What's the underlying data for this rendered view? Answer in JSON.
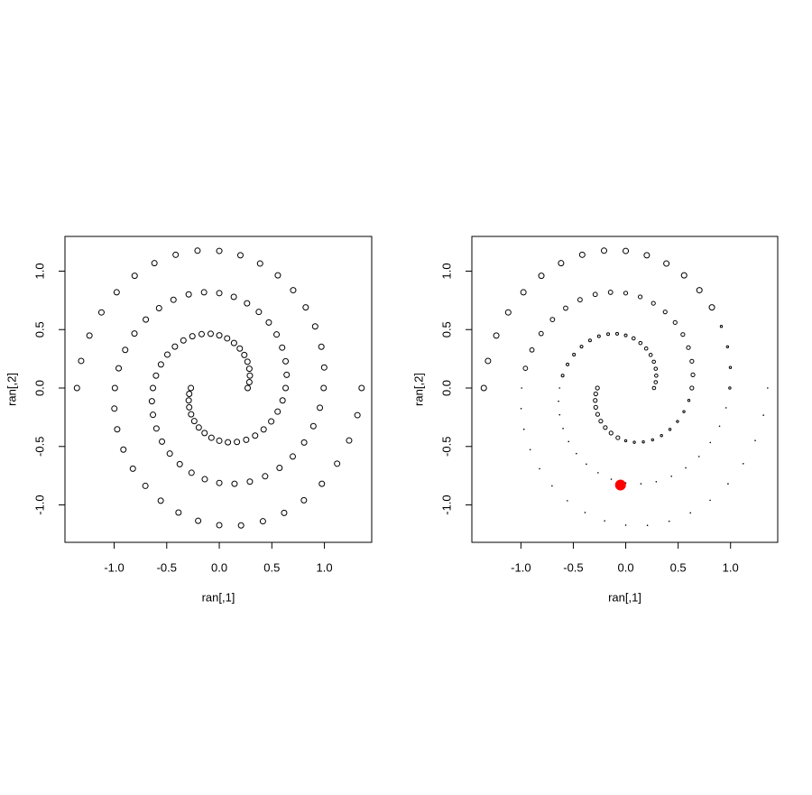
{
  "chart_data": [
    {
      "type": "scatter",
      "xlabel": "ran[,1]",
      "ylabel": "ran[,2]",
      "color": "#000000",
      "xlim": [
        -1.468,
        1.45
      ],
      "ylim": [
        -1.32,
        1.297
      ],
      "xticks": [
        {
          "value": -1,
          "label": "-1.0"
        },
        -0.5,
        {
          "value": 0,
          "label": "0.0"
        },
        0.5,
        {
          "value": 1,
          "label": "1.0"
        }
      ],
      "yticks": [
        {
          "value": -1,
          "label": "-1.0"
        },
        -0.5,
        {
          "value": 0,
          "label": "0.0"
        },
        0.5,
        {
          "value": 1,
          "label": "1.0"
        }
      ],
      "x": [
        0.27,
        0.286,
        0.291,
        0.286,
        0.268,
        0.238,
        0.195,
        0.14,
        0.075,
        0,
        -0.082,
        -0.168,
        -0.256,
        -0.341,
        -0.422,
        -0.494,
        -0.555,
        -0.602,
        -0.631,
        -0.641,
        -0.631,
        -0.598,
        -0.545,
        -0.471,
        -0.376,
        -0.264,
        -0.138,
        0,
        0.145,
        0.291,
        0.436,
        0.573,
        0.699,
        0.807,
        0.895,
        0.957,
        0.993,
        0.998,
        0.971,
        0.912,
        0.822,
        0.703,
        0.557,
        0.388,
        0.201,
        0,
        -0.207,
        -0.415,
        -0.617,
        -0.805,
        -0.976,
        -1.121,
        -1.235,
        -1.314,
        -1.354,
        -0.27,
        -0.286,
        -0.291,
        -0.286,
        -0.268,
        -0.238,
        -0.195,
        -0.14,
        -0.075,
        0,
        0.082,
        0.168,
        0.256,
        0.341,
        0.422,
        0.494,
        0.555,
        0.602,
        0.631,
        0.641,
        0.631,
        0.598,
        0.545,
        0.471,
        0.376,
        0.264,
        0.138,
        0,
        -0.145,
        -0.291,
        -0.436,
        -0.573,
        -0.699,
        -0.807,
        -0.895,
        -0.957,
        -0.993,
        -0.998,
        -0.971,
        -0.912,
        -0.822,
        -0.703,
        -0.557,
        -0.388,
        -0.201,
        0,
        0.207,
        0.415,
        0.617,
        0.805,
        0.976,
        1.121,
        1.235,
        1.314,
        1.354
      ],
      "y": [
        0,
        0.05,
        0.106,
        0.165,
        0.225,
        0.283,
        0.338,
        0.385,
        0.425,
        0.451,
        0.464,
        0.461,
        0.443,
        0.407,
        0.354,
        0.286,
        0.202,
        0.106,
        0,
        -0.113,
        -0.229,
        -0.346,
        -0.458,
        -0.561,
        -0.651,
        -0.725,
        -0.78,
        -0.812,
        -0.819,
        -0.801,
        -0.755,
        -0.683,
        -0.586,
        -0.466,
        -0.326,
        -0.169,
        0,
        0.176,
        0.353,
        0.527,
        0.69,
        0.837,
        0.964,
        1.065,
        1.136,
        1.173,
        1.175,
        1.14,
        1.068,
        0.96,
        0.819,
        0.647,
        0.449,
        0.232,
        0,
        0,
        -0.05,
        -0.106,
        -0.165,
        -0.225,
        -0.283,
        -0.338,
        -0.385,
        -0.425,
        -0.451,
        -0.464,
        -0.461,
        -0.443,
        -0.407,
        -0.354,
        -0.286,
        -0.202,
        -0.106,
        0,
        0.113,
        0.229,
        0.346,
        0.458,
        0.561,
        0.651,
        0.725,
        0.78,
        0.812,
        0.819,
        0.801,
        0.755,
        0.683,
        0.586,
        0.466,
        0.326,
        0.169,
        0,
        -0.176,
        -0.353,
        -0.527,
        -0.69,
        -0.837,
        -0.964,
        -1.065,
        -1.136,
        -1.173,
        -1.175,
        -1.14,
        -1.068,
        -0.96,
        -0.819,
        -0.647,
        -0.449,
        -0.232,
        0
      ]
    },
    {
      "type": "scatter",
      "xlabel": "ran[,1]",
      "ylabel": "ran[,2]",
      "color": "#000000",
      "xlim": [
        -1.468,
        1.45
      ],
      "ylim": [
        -1.32,
        1.297
      ],
      "xticks": [
        {
          "value": -1,
          "label": "-1.0"
        },
        -0.5,
        {
          "value": 0,
          "label": "0.0"
        },
        0.5,
        {
          "value": 1,
          "label": "1.0"
        }
      ],
      "yticks": [
        {
          "value": -1,
          "label": "-1.0"
        },
        -0.5,
        {
          "value": 0,
          "label": "0.0"
        },
        0.5,
        {
          "value": 1,
          "label": "1.0"
        }
      ],
      "x": [
        0.27,
        0.286,
        0.291,
        0.286,
        0.268,
        0.238,
        0.195,
        0.14,
        0.075,
        0,
        -0.082,
        -0.168,
        -0.256,
        -0.341,
        -0.422,
        -0.494,
        -0.555,
        -0.602,
        -0.631,
        -0.641,
        -0.631,
        -0.598,
        -0.545,
        -0.471,
        -0.376,
        -0.264,
        -0.138,
        0,
        0.145,
        0.291,
        0.436,
        0.573,
        0.699,
        0.807,
        0.895,
        0.957,
        0.993,
        0.998,
        0.971,
        0.912,
        0.822,
        0.703,
        0.557,
        0.388,
        0.201,
        0,
        -0.207,
        -0.415,
        -0.617,
        -0.805,
        -0.976,
        -1.121,
        -1.235,
        -1.314,
        -1.354,
        -0.27,
        -0.286,
        -0.291,
        -0.286,
        -0.268,
        -0.238,
        -0.195,
        -0.14,
        -0.075,
        0,
        0.082,
        0.168,
        0.256,
        0.341,
        0.422,
        0.494,
        0.555,
        0.602,
        0.631,
        0.641,
        0.631,
        0.598,
        0.545,
        0.471,
        0.376,
        0.264,
        0.138,
        0,
        -0.145,
        -0.291,
        -0.436,
        -0.573,
        -0.699,
        -0.807,
        -0.895,
        -0.957,
        -0.993,
        -0.998,
        -0.971,
        -0.912,
        -0.822,
        -0.703,
        -0.557,
        -0.388,
        -0.201,
        0,
        0.207,
        0.415,
        0.617,
        0.805,
        0.976,
        1.121,
        1.235,
        1.314,
        1.354
      ],
      "y": [
        0,
        0.05,
        0.106,
        0.165,
        0.225,
        0.283,
        0.338,
        0.385,
        0.425,
        0.451,
        0.464,
        0.461,
        0.443,
        0.407,
        0.354,
        0.286,
        0.202,
        0.106,
        0,
        -0.113,
        -0.229,
        -0.346,
        -0.458,
        -0.561,
        -0.651,
        -0.725,
        -0.78,
        -0.812,
        -0.819,
        -0.801,
        -0.755,
        -0.683,
        -0.586,
        -0.466,
        -0.326,
        -0.169,
        0,
        0.176,
        0.353,
        0.527,
        0.69,
        0.837,
        0.964,
        1.065,
        1.136,
        1.173,
        1.175,
        1.14,
        1.068,
        0.96,
        0.819,
        0.647,
        0.449,
        0.232,
        0,
        0,
        -0.05,
        -0.106,
        -0.165,
        -0.225,
        -0.283,
        -0.338,
        -0.385,
        -0.425,
        -0.451,
        -0.464,
        -0.461,
        -0.443,
        -0.407,
        -0.354,
        -0.286,
        -0.202,
        -0.106,
        0,
        0.113,
        0.229,
        0.346,
        0.458,
        0.561,
        0.651,
        0.725,
        0.78,
        0.812,
        0.819,
        0.801,
        0.755,
        0.683,
        0.586,
        0.466,
        0.326,
        0.169,
        0,
        -0.176,
        -0.353,
        -0.527,
        -0.69,
        -0.837,
        -0.964,
        -1.065,
        -1.136,
        -1.173,
        -1.175,
        -1.14,
        -1.068,
        -0.96,
        -0.819,
        -0.647,
        -0.449,
        -0.232,
        0
      ],
      "sizes": [
        0.6,
        0.6,
        0.6,
        0.6,
        0.6,
        0.6,
        0.6,
        0.6,
        0.6,
        0.5,
        0.5,
        0.5,
        0.5,
        0.5,
        0.5,
        0.5,
        0.5,
        0.5,
        0.2,
        0.2,
        0.2,
        0.2,
        0.2,
        0.2,
        0.2,
        0.2,
        0.2,
        0.2,
        0.2,
        0.2,
        0.2,
        0.2,
        0.2,
        0.2,
        0.2,
        0.2,
        0.4,
        0.4,
        0.4,
        0.4,
        1,
        1,
        1,
        1,
        1,
        1,
        1,
        1,
        1,
        1,
        1,
        1,
        1,
        1,
        1,
        0.7,
        0.7,
        0.7,
        0.7,
        0.7,
        0.7,
        0.7,
        0.7,
        0.7,
        0.4,
        0.4,
        0.4,
        0.4,
        0.4,
        0.4,
        0.4,
        0.4,
        0.4,
        0.7,
        0.7,
        0.7,
        0.7,
        0.7,
        0.7,
        0.7,
        0.7,
        0.7,
        0.7,
        0.8,
        0.8,
        0.8,
        0.8,
        0.8,
        0.8,
        0.8,
        0.8,
        0.2,
        0.2,
        0.2,
        0.2,
        0.2,
        0.2,
        0.2,
        0.2,
        0.2,
        0.1,
        0.1,
        0.1,
        0.1,
        0.1,
        0.1,
        0.1,
        0.1,
        0.1,
        0.1
      ],
      "highlight": {
        "x": -0.05,
        "y": -0.83,
        "color": "#ff0000"
      }
    }
  ]
}
